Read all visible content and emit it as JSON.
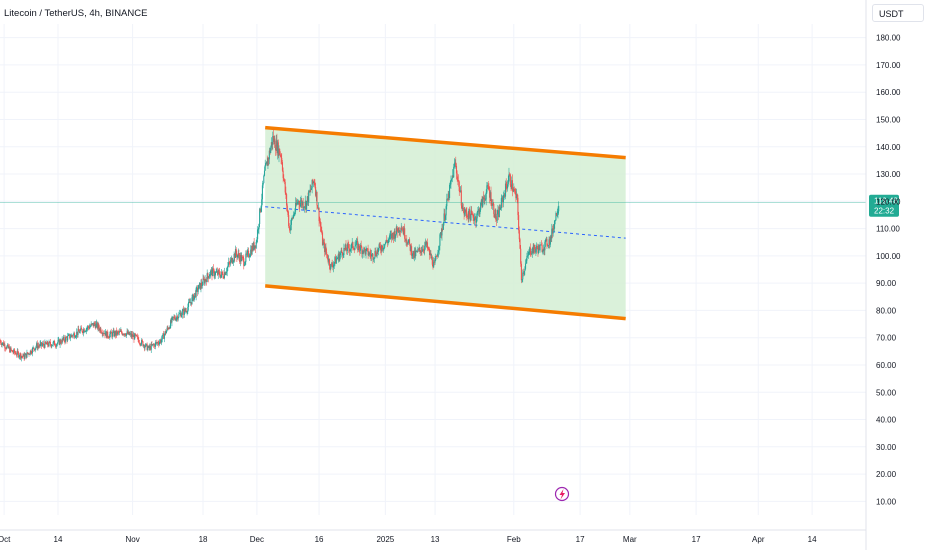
{
  "header": {
    "symbol_title": "Litecoin / TetherUS, 4h, BINANCE",
    "currency_label": "USDT"
  },
  "price_scale": {
    "ticks": [
      "180.00",
      "170.00",
      "160.00",
      "150.00",
      "140.00",
      "130.00",
      "120.00",
      "110.00",
      "100.00",
      "90.00",
      "80.00",
      "70.00",
      "60.00",
      "50.00",
      "40.00",
      "30.00",
      "20.00",
      "10.00"
    ],
    "last_price": "119.48",
    "countdown": "22:32",
    "last_price_color": "#22ab94"
  },
  "time_axis": {
    "labels": [
      "Oct",
      "14",
      "Nov",
      "18",
      "Dec",
      "16",
      "2025",
      "13",
      "Feb",
      "17",
      "Mar",
      "17",
      "Apr",
      "14"
    ]
  },
  "indicator_icon": "lightning-icon",
  "colors": {
    "up": "#26a69a",
    "down": "#ef5350",
    "channel_line": "#f57c00",
    "channel_fill": "#d4efd4",
    "mid_line": "#2962ff",
    "grid": "#f0f3fa"
  },
  "chart_data": {
    "type": "candlestick",
    "title": "Litecoin / TetherUS, 4h, BINANCE",
    "currency": "USDT",
    "y_range": [
      5,
      185
    ],
    "x_range": [
      "2024-09-30",
      "2025-04-27"
    ],
    "last_price": 119.48,
    "price_path": [
      [
        "2024-09-30",
        69
      ],
      [
        "2024-10-03",
        65
      ],
      [
        "2024-10-06",
        63
      ],
      [
        "2024-10-09",
        67
      ],
      [
        "2024-10-14",
        68
      ],
      [
        "2024-10-19",
        72
      ],
      [
        "2024-10-23",
        75
      ],
      [
        "2024-10-26",
        71
      ],
      [
        "2024-10-30",
        72
      ],
      [
        "2024-11-02",
        70
      ],
      [
        "2024-11-05",
        66
      ],
      [
        "2024-11-08",
        69
      ],
      [
        "2024-11-11",
        77
      ],
      [
        "2024-11-14",
        80
      ],
      [
        "2024-11-17",
        88
      ],
      [
        "2024-11-20",
        94
      ],
      [
        "2024-11-23",
        93
      ],
      [
        "2024-11-26",
        101
      ],
      [
        "2024-11-28",
        98
      ],
      [
        "2024-12-01",
        105
      ],
      [
        "2024-12-03",
        130
      ],
      [
        "2024-12-05",
        143
      ],
      [
        "2024-12-07",
        137
      ],
      [
        "2024-12-09",
        110
      ],
      [
        "2024-12-11",
        120
      ],
      [
        "2024-12-13",
        119
      ],
      [
        "2024-12-15",
        128
      ],
      [
        "2024-12-17",
        105
      ],
      [
        "2024-12-19",
        96
      ],
      [
        "2024-12-22",
        102
      ],
      [
        "2024-12-25",
        104
      ],
      [
        "2024-12-29",
        100
      ],
      [
        "2025-01-02",
        106
      ],
      [
        "2025-01-05",
        111
      ],
      [
        "2025-01-08",
        100
      ],
      [
        "2025-01-11",
        104
      ],
      [
        "2025-01-13",
        96
      ],
      [
        "2025-01-16",
        119
      ],
      [
        "2025-01-18",
        134
      ],
      [
        "2025-01-20",
        116
      ],
      [
        "2025-01-23",
        114
      ],
      [
        "2025-01-26",
        125
      ],
      [
        "2025-01-28",
        113
      ],
      [
        "2025-01-31",
        129
      ],
      [
        "2025-02-02",
        120
      ],
      [
        "2025-02-03",
        92
      ],
      [
        "2025-02-05",
        102
      ],
      [
        "2025-02-08",
        103
      ],
      [
        "2025-02-10",
        106
      ],
      [
        "2025-02-12",
        119.48
      ]
    ],
    "annotations": [
      {
        "type": "channel_line",
        "label": "upper",
        "from": [
          "2024-12-03",
          147
        ],
        "to": [
          "2025-02-28",
          136
        ]
      },
      {
        "type": "channel_line",
        "label": "lower",
        "from": [
          "2024-12-03",
          89
        ],
        "to": [
          "2025-02-28",
          77
        ]
      },
      {
        "type": "channel_mid",
        "from": [
          "2024-12-03",
          118
        ],
        "to": [
          "2025-02-28",
          106.5
        ]
      }
    ],
    "grid": true,
    "legend": "none"
  }
}
